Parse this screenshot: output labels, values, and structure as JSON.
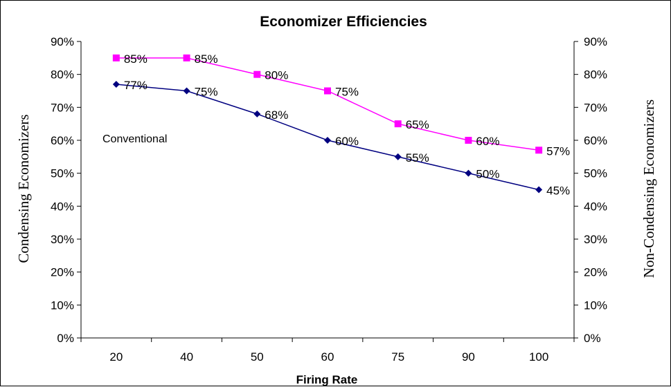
{
  "chart_data": {
    "type": "line",
    "title": "Economizer Efficiencies",
    "xlabel": "Firing Rate",
    "ylabel_left": "Condensing Economizers",
    "ylabel_right": "Non-Condensing Economizers",
    "categories": [
      "20",
      "40",
      "50",
      "60",
      "75",
      "90",
      "100"
    ],
    "ylim": [
      0,
      90
    ],
    "yticks": [
      "0%",
      "10%",
      "20%",
      "30%",
      "40%",
      "50%",
      "60%",
      "70%",
      "80%",
      "90%"
    ],
    "grid": false,
    "annotation": "Conventional",
    "series": [
      {
        "key": "condensing",
        "color": "#ff00ff",
        "marker": "square",
        "values": [
          85,
          85,
          80,
          75,
          65,
          60,
          57
        ],
        "labels": [
          "85%",
          "85%",
          "80%",
          "75%",
          "65%",
          "60%",
          "57%"
        ]
      },
      {
        "key": "conventional",
        "color": "#000080",
        "marker": "diamond",
        "values": [
          77,
          75,
          68,
          60,
          55,
          50,
          45
        ],
        "labels": [
          "77%",
          "75%",
          "68%",
          "60%",
          "55%",
          "50%",
          "45%"
        ]
      }
    ]
  }
}
